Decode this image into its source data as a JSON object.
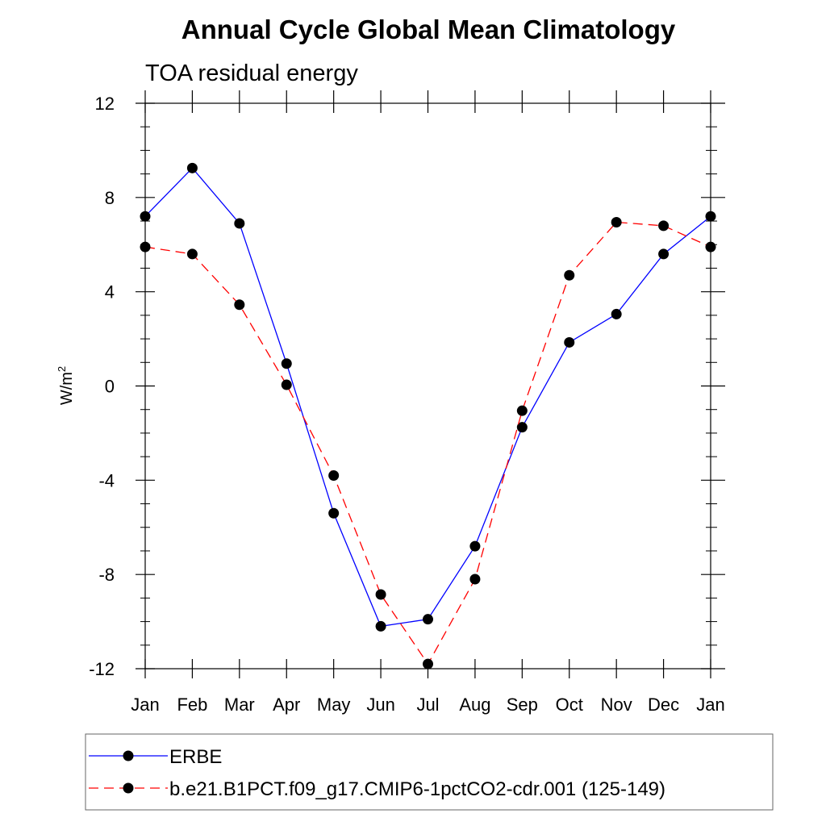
{
  "chart_data": {
    "type": "line",
    "title": "Annual Cycle Global Mean Climatology",
    "subtitle": "TOA residual energy",
    "ylabel": "W/m",
    "ylabel_superscript": "2",
    "xlabel": "",
    "categories": [
      "Jan",
      "Feb",
      "Mar",
      "Apr",
      "May",
      "Jun",
      "Jul",
      "Aug",
      "Sep",
      "Oct",
      "Nov",
      "Dec",
      "Jan"
    ],
    "ylim": [
      -12,
      12
    ],
    "yticks": [
      12,
      8,
      4,
      0,
      -4,
      -8,
      -12
    ],
    "ytick_labels": [
      "12",
      "8",
      "4",
      "0",
      "-4",
      "-8",
      "-12"
    ],
    "grid": false,
    "legend_position": "bottom",
    "series": [
      {
        "name": "ERBE",
        "color": "#0000ff",
        "dash": "solid",
        "values": [
          7.2,
          9.25,
          6.9,
          0.95,
          -5.4,
          -10.2,
          -9.9,
          -6.8,
          -1.75,
          1.85,
          3.05,
          5.6,
          7.2
        ]
      },
      {
        "name": "b.e21.B1PCT.f09_g17.CMIP6-1pctCO2-cdr.001 (125-149)",
        "color": "#ff0000",
        "dash": "dashed",
        "values": [
          5.9,
          5.6,
          3.45,
          0.05,
          -3.8,
          -8.85,
          -11.8,
          -8.2,
          -1.05,
          4.7,
          6.95,
          6.8,
          5.9
        ]
      }
    ]
  }
}
